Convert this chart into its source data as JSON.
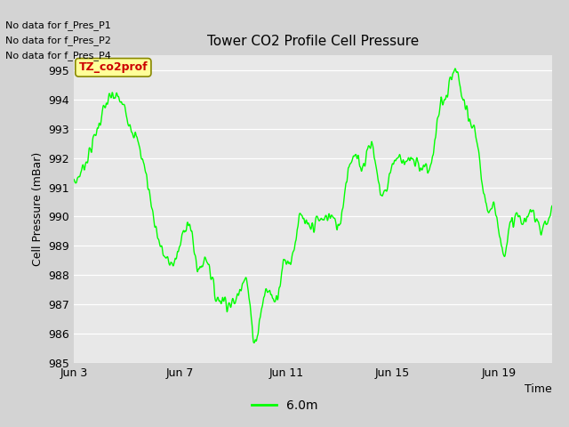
{
  "title": "Tower CO2 Profile Cell Pressure",
  "ylabel": "Cell Pressure (mBar)",
  "xlabel": "Time",
  "ylim": [
    985.0,
    995.5
  ],
  "yticks": [
    985.0,
    986.0,
    987.0,
    988.0,
    989.0,
    990.0,
    991.0,
    992.0,
    993.0,
    994.0,
    995.0
  ],
  "xtick_labels": [
    "Jun 3",
    "Jun 7",
    "Jun 11",
    "Jun 15",
    "Jun 19"
  ],
  "xtick_positions": [
    0,
    4,
    8,
    12,
    16
  ],
  "xlim": [
    0,
    18
  ],
  "bg_color": "#e8e8e8",
  "fig_bg_color": "#d3d3d3",
  "line_color": "#00ff00",
  "legend_label": "6.0m",
  "no_data_lines": [
    "No data for f_Pres_P1",
    "No data for f_Pres_P2",
    "No data for f_Pres_P4"
  ],
  "legend_box_label": "TZ_co2prof",
  "legend_box_bg": "#ffff99",
  "legend_box_border": "#cc0000"
}
